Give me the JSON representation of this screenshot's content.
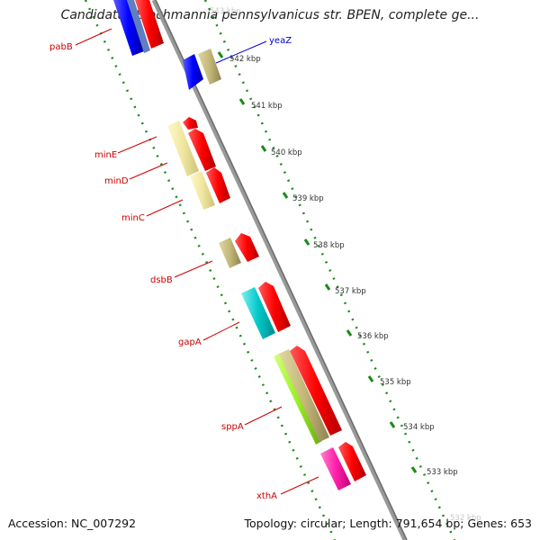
{
  "title": "Candidatus Blochmannia pennsylvanicus str. BPEN, complete ge...",
  "footer": {
    "accession": "Accession: NC_007292",
    "topology": "Topology: circular; Length: 791,654 bp; Genes: 653"
  },
  "colors": {
    "backbone": "#888888",
    "tick_dots": "#1a8a1a",
    "gene_label": "#cc0000",
    "gene_label_blue": "#0000cc"
  },
  "scale_labels": [
    "543 kbp",
    "542 kbp",
    "541 kbp",
    "540 kbp",
    "539 kbp",
    "538 kbp",
    "537 kbp",
    "536 kbp",
    "535 kbp",
    "534 kbp",
    "533 kbp",
    "532 kbp"
  ],
  "genes": [
    {
      "name": "pabB",
      "color": "#cc0000"
    },
    {
      "name": "yeaZ",
      "color": "#0000cc"
    },
    {
      "name": "minE",
      "color": "#cc0000"
    },
    {
      "name": "minD",
      "color": "#cc0000"
    },
    {
      "name": "minC",
      "color": "#cc0000"
    },
    {
      "name": "dsbB",
      "color": "#cc0000"
    },
    {
      "name": "gapA",
      "color": "#cc0000"
    },
    {
      "name": "sppA",
      "color": "#cc0000"
    },
    {
      "name": "xthA",
      "color": "#cc0000"
    }
  ]
}
